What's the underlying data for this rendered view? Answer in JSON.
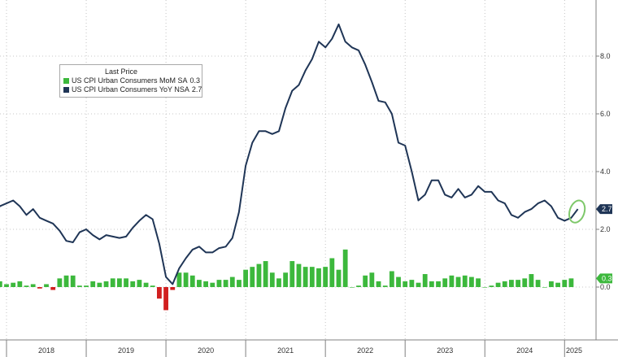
{
  "chart_data": {
    "type": "line+bar",
    "title": "",
    "xlabel": "",
    "ylabel": "",
    "ylim": [
      -1.6,
      9.9
    ],
    "yticks": [
      "8.0",
      "6.0",
      "4.0",
      "2.0",
      "0.0"
    ],
    "ytick_values": [
      8,
      6,
      4,
      2,
      0
    ],
    "xticks": [
      "2018",
      "2019",
      "2020",
      "2021",
      "2022",
      "2023",
      "2024",
      "2025"
    ],
    "grid": true,
    "legend": {
      "title": "Last Price",
      "placement": "top-left",
      "entries": [
        {
          "label": "US CPI Urban Consumers MoM SA",
          "value": "0.3",
          "color": "#3cb83c"
        },
        {
          "label": "US CPI Urban Consumers YoY NSA",
          "value": "2.7",
          "color": "#1f3556"
        }
      ]
    },
    "last_value_labels": [
      {
        "text": "2.7",
        "value": 2.7,
        "color": "#1f3556"
      },
      {
        "text": "0.3",
        "value": 0.3,
        "color": "#3cb83c"
      }
    ],
    "x_start": "2017-10",
    "series": [
      {
        "name": "US CPI Urban Consumers YoY NSA",
        "kind": "line",
        "color": "#1f3556",
        "values": [
          2.4,
          2.5,
          2.8,
          2.9,
          3.0,
          2.8,
          2.5,
          2.7,
          2.4,
          2.3,
          2.2,
          1.95,
          1.6,
          1.55,
          1.9,
          2.0,
          1.8,
          1.65,
          1.8,
          1.75,
          1.7,
          1.75,
          2.05,
          2.3,
          2.5,
          2.35,
          1.5,
          0.35,
          0.1,
          0.65,
          1.0,
          1.3,
          1.4,
          1.2,
          1.2,
          1.35,
          1.4,
          1.7,
          2.6,
          4.2,
          5.0,
          5.4,
          5.4,
          5.3,
          5.4,
          6.2,
          6.8,
          7.0,
          7.5,
          7.9,
          8.5,
          8.3,
          8.6,
          9.1,
          8.5,
          8.3,
          8.2,
          7.7,
          7.1,
          6.45,
          6.4,
          6.0,
          5.0,
          4.9,
          4.0,
          3.0,
          3.2,
          3.7,
          3.7,
          3.2,
          3.1,
          3.4,
          3.1,
          3.2,
          3.5,
          3.3,
          3.3,
          3.0,
          2.9,
          2.5,
          2.4,
          2.6,
          2.7,
          2.9,
          3.0,
          2.8,
          2.4,
          2.3,
          2.4,
          2.7
        ]
      },
      {
        "name": "US CPI Urban Consumers MoM SA",
        "kind": "bar",
        "color_positive": "#3cb83c",
        "color_negative": "#d11f1f",
        "values": [
          0.25,
          0.25,
          0.2,
          0.1,
          0.15,
          0.2,
          0.05,
          0.1,
          -0.05,
          0.1,
          -0.1,
          0.3,
          0.4,
          0.4,
          0.05,
          0.05,
          0.2,
          0.15,
          0.2,
          0.3,
          0.3,
          0.3,
          0.2,
          0.25,
          0.15,
          0.05,
          -0.4,
          -0.8,
          -0.1,
          0.5,
          0.5,
          0.4,
          0.25,
          0.2,
          0.15,
          0.25,
          0.25,
          0.35,
          0.25,
          0.6,
          0.7,
          0.8,
          0.9,
          0.5,
          0.3,
          0.5,
          0.9,
          0.8,
          0.7,
          0.7,
          0.65,
          0.7,
          1.0,
          0.6,
          1.3,
          0.0,
          0.05,
          0.4,
          0.5,
          0.2,
          0.05,
          0.55,
          0.35,
          0.2,
          0.25,
          0.15,
          0.45,
          0.2,
          0.2,
          0.3,
          0.4,
          0.35,
          0.4,
          0.35,
          0.3,
          0.0,
          0.05,
          0.15,
          0.2,
          0.25,
          0.25,
          0.3,
          0.45,
          0.25,
          0.0,
          0.2,
          0.15,
          0.25,
          0.3
        ]
      }
    ]
  }
}
